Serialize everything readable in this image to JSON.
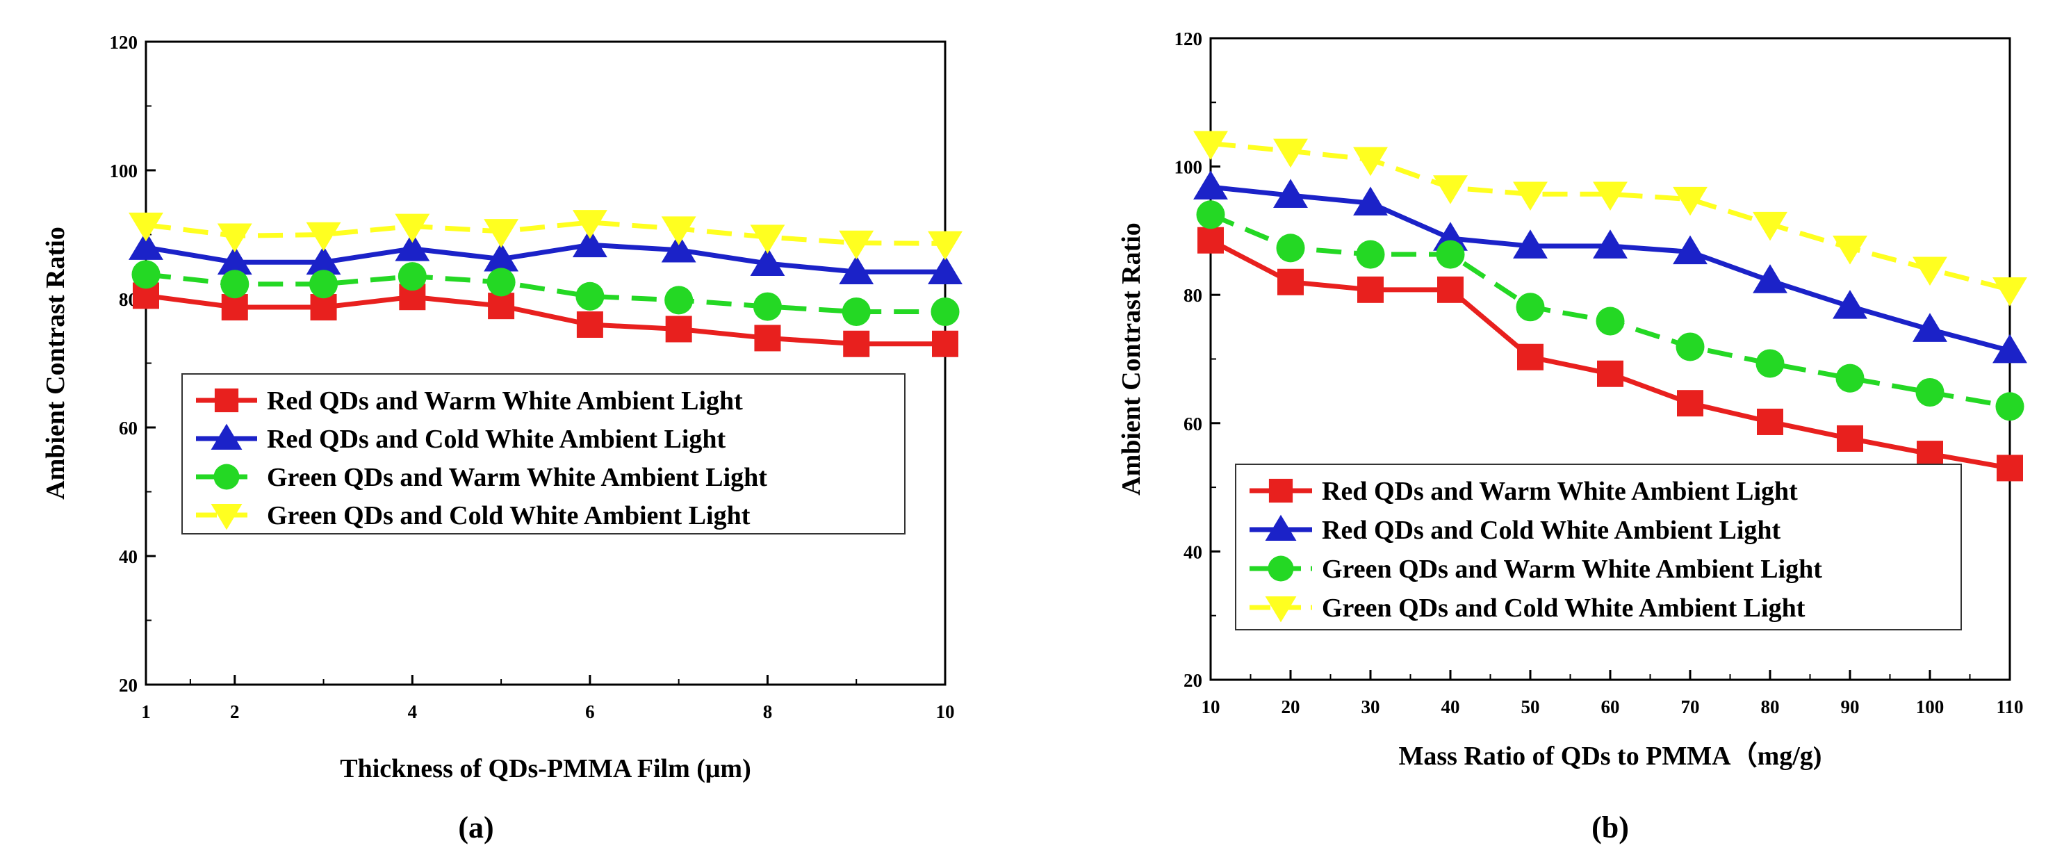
{
  "chart_data": [
    {
      "type": "line",
      "panel_label": "(a)",
      "xlabel": "Thickness of QDs-PMMA Film (μm)",
      "ylabel": "Ambient Contrast Ratio",
      "xlim": [
        1,
        10
      ],
      "ylim": [
        20,
        120
      ],
      "xticks": [
        2,
        4,
        6,
        8,
        10
      ],
      "yticks": [
        20,
        40,
        60,
        80,
        100,
        120
      ],
      "x": [
        1,
        2,
        3,
        4,
        5,
        6,
        7,
        8,
        9,
        10
      ],
      "legend_position": "center-left",
      "series": [
        {
          "name": "Red QDs and Warm White Ambient Light",
          "color": "#e8201e",
          "marker": "square",
          "dashed": false,
          "values": [
            80.5,
            78.7,
            78.7,
            80.3,
            78.9,
            76,
            75.3,
            73.9,
            73,
            73
          ]
        },
        {
          "name": "Red QDs and Cold White Ambient Light",
          "color": "#1b22c8",
          "marker": "triangle-up",
          "dashed": false,
          "values": [
            88,
            85.7,
            85.7,
            87.8,
            86.2,
            88.4,
            87.6,
            85.5,
            84.2,
            84.2
          ]
        },
        {
          "name": "Green QDs and Warm White Ambient Light",
          "color": "#24d824",
          "marker": "circle",
          "dashed": true,
          "values": [
            83.8,
            82.3,
            82.3,
            83.5,
            82.6,
            80.4,
            79.8,
            78.8,
            78,
            78
          ]
        },
        {
          "name": "Green QDs and Cold White Ambient Light",
          "color": "#ffff20",
          "marker": "triangle-down",
          "dashed": true,
          "values": [
            91.5,
            89.8,
            90,
            91.3,
            90.5,
            91.9,
            90.9,
            89.6,
            88.7,
            88.6
          ]
        }
      ]
    },
    {
      "type": "line",
      "panel_label": "(b)",
      "xlabel": "Mass Ratio of QDs to PMMA（mg/g)",
      "ylabel": "Ambient Contrast Ratio",
      "xlim": [
        10,
        110
      ],
      "ylim": [
        20,
        120
      ],
      "xticks": [
        10,
        20,
        30,
        40,
        50,
        60,
        70,
        80,
        90,
        100,
        110
      ],
      "yticks": [
        20,
        40,
        60,
        80,
        100,
        120
      ],
      "x": [
        10,
        20,
        30,
        40,
        50,
        60,
        70,
        80,
        90,
        100,
        110
      ],
      "legend_position": "bottom-left",
      "series": [
        {
          "name": "Red QDs and Warm White Ambient Light",
          "color": "#e8201e",
          "marker": "square",
          "dashed": false,
          "values": [
            88.5,
            82,
            80.8,
            80.8,
            70.3,
            67.7,
            63.1,
            60.2,
            57.6,
            55.2,
            53
          ]
        },
        {
          "name": "Red QDs and Cold White Ambient Light",
          "color": "#1b22c8",
          "marker": "triangle-up",
          "dashed": false,
          "values": [
            96.8,
            95.5,
            94.3,
            88.8,
            87.6,
            87.6,
            86.7,
            82.2,
            78.2,
            74.6,
            71.3
          ]
        },
        {
          "name": "Green QDs and Warm White Ambient Light",
          "color": "#24d824",
          "marker": "circle",
          "dashed": true,
          "values": [
            92.5,
            87.3,
            86.3,
            86.3,
            78.1,
            75.9,
            71.9,
            69.3,
            67,
            64.8,
            62.6
          ]
        },
        {
          "name": "Green QDs and Cold White Ambient Light",
          "color": "#ffff20",
          "marker": "triangle-down",
          "dashed": true,
          "values": [
            103.6,
            102.4,
            101.1,
            96.7,
            95.7,
            95.7,
            94.9,
            91,
            87.3,
            84,
            80.8
          ]
        }
      ]
    }
  ]
}
